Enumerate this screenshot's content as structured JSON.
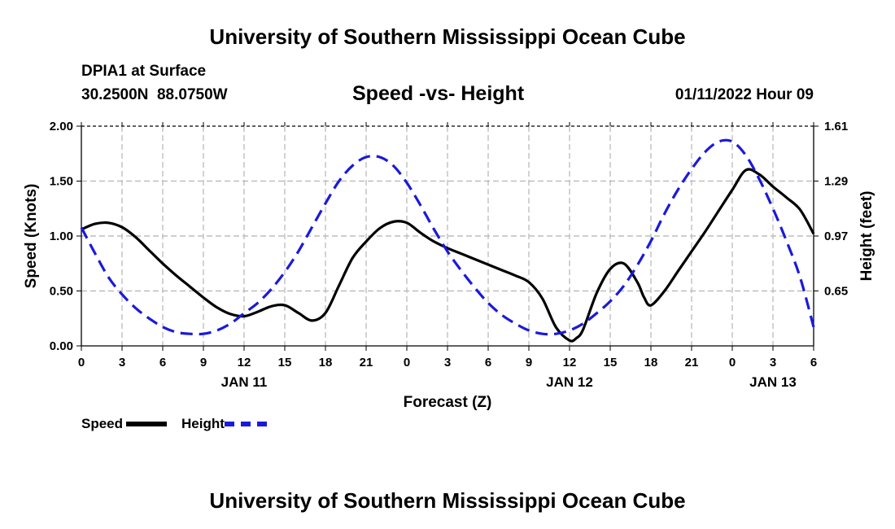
{
  "header": {
    "title_top": "University of Southern Mississippi Ocean Cube",
    "station": "DPIA1 at Surface",
    "coords": "30.2500N  88.0750W",
    "datetime": "01/11/2022 Hour 09",
    "title_bottom": "University of Southern Mississippi Ocean Cube"
  },
  "legend": {
    "speed_label": "Speed",
    "height_label": "Height",
    "speed_color": "#000000",
    "height_color": "#1a1adc"
  },
  "chart_data": {
    "type": "line",
    "title": "Speed -vs- Height",
    "xlabel": "Forecast (Z)",
    "ylabel": "Speed (Knots)",
    "y2label": "Height (feet)",
    "x_unit": "forecast hours from JAN 11 00Z",
    "xlim": [
      0,
      54
    ],
    "ylim": [
      0,
      2
    ],
    "y2lim": [
      0.33,
      1.61
    ],
    "grid": true,
    "legend_position": "bottom-left",
    "x_ticks": [
      0,
      3,
      6,
      9,
      12,
      15,
      18,
      21,
      24,
      27,
      30,
      33,
      36,
      39,
      42,
      45,
      48,
      51,
      54
    ],
    "x_tick_labels": [
      "0",
      "3",
      "6",
      "9",
      "12",
      "15",
      "18",
      "21",
      "0",
      "3",
      "6",
      "9",
      "12",
      "15",
      "18",
      "21",
      "0",
      "3",
      "6"
    ],
    "day_labels": [
      {
        "x": 12,
        "text": "JAN 11"
      },
      {
        "x": 36,
        "text": "JAN 12"
      },
      {
        "x": 51,
        "text": "JAN 13"
      }
    ],
    "y_ticks": [
      0,
      0.5,
      1.0,
      1.5,
      2.0
    ],
    "y_tick_labels": [
      "0.00",
      "0.50",
      "1.00",
      "1.50",
      "2.00"
    ],
    "y2_ticks": [
      0.65,
      0.97,
      1.29,
      1.61
    ],
    "y2_tick_labels": [
      "0.65",
      "0.97",
      "1.29",
      "1.61"
    ],
    "series": [
      {
        "name": "Speed",
        "axis": "left",
        "style": "solid",
        "color": "#000000",
        "x": [
          0,
          1,
          2,
          3,
          4,
          5,
          6,
          7,
          8,
          9,
          10,
          11,
          12,
          13,
          14,
          15,
          16,
          17,
          18,
          19,
          20,
          21,
          22,
          23,
          24,
          25,
          26,
          27,
          28,
          29,
          30,
          31,
          32,
          33,
          34,
          35,
          36,
          36.5,
          37,
          38,
          39,
          40,
          41,
          41.5,
          42,
          43,
          44,
          45,
          46,
          47,
          48,
          49,
          50,
          51,
          52,
          53,
          54
        ],
        "y": [
          1.06,
          1.11,
          1.12,
          1.08,
          0.99,
          0.87,
          0.75,
          0.64,
          0.54,
          0.44,
          0.35,
          0.29,
          0.27,
          0.31,
          0.36,
          0.37,
          0.3,
          0.23,
          0.3,
          0.55,
          0.8,
          0.95,
          1.07,
          1.13,
          1.12,
          1.03,
          0.95,
          0.89,
          0.84,
          0.79,
          0.74,
          0.69,
          0.64,
          0.58,
          0.43,
          0.17,
          0.05,
          0.07,
          0.15,
          0.48,
          0.7,
          0.75,
          0.58,
          0.44,
          0.37,
          0.5,
          0.68,
          0.86,
          1.04,
          1.23,
          1.42,
          1.6,
          1.56,
          1.45,
          1.35,
          1.24,
          1.02
        ]
      },
      {
        "name": "Height",
        "axis": "right",
        "style": "dashed",
        "color": "#1a1adc",
        "x": [
          0,
          1,
          2,
          3,
          4,
          5,
          6,
          7,
          8,
          9,
          10,
          11,
          12,
          13,
          14,
          15,
          16,
          17,
          18,
          19,
          20,
          21,
          22,
          23,
          24,
          25,
          26,
          27,
          28,
          29,
          30,
          31,
          32,
          33,
          34,
          35,
          36,
          37,
          38,
          39,
          40,
          41,
          42,
          43,
          44,
          45,
          46,
          47,
          48,
          49,
          50,
          51,
          52,
          53,
          54
        ],
        "y": [
          1.02,
          0.87,
          0.73,
          0.63,
          0.55,
          0.49,
          0.44,
          0.41,
          0.4,
          0.4,
          0.42,
          0.46,
          0.52,
          0.58,
          0.66,
          0.76,
          0.88,
          1.02,
          1.16,
          1.29,
          1.38,
          1.43,
          1.43,
          1.38,
          1.28,
          1.15,
          1.01,
          0.88,
          0.77,
          0.67,
          0.58,
          0.51,
          0.46,
          0.42,
          0.4,
          0.4,
          0.42,
          0.46,
          0.52,
          0.59,
          0.68,
          0.8,
          0.94,
          1.1,
          1.24,
          1.36,
          1.46,
          1.52,
          1.52,
          1.44,
          1.3,
          1.13,
          0.94,
          0.73,
          0.44
        ]
      }
    ]
  }
}
